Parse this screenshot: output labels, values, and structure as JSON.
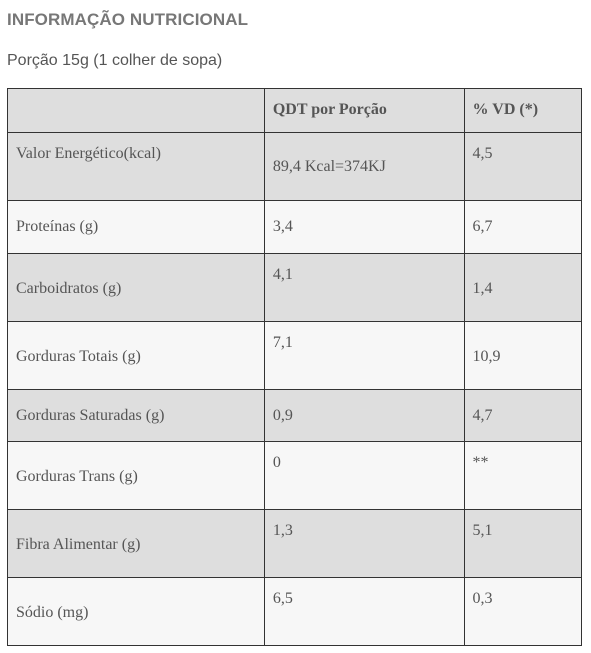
{
  "title": "INFORMAÇÃO NUTRICIONAL",
  "portion": "Porção 15g (1 colher de sopa)",
  "table": {
    "headers": [
      "",
      "QDT por Porção",
      "% VD (*)"
    ],
    "rows": [
      {
        "name": "Valor Energético(kcal)",
        "qty": "89,4 Kcal=374KJ",
        "vd": "4,5"
      },
      {
        "name": "Proteínas (g)",
        "qty": "3,4",
        "vd": "6,7"
      },
      {
        "name": "Carboidratos (g)",
        "qty": "4,1",
        "vd": "1,4"
      },
      {
        "name": "Gorduras Totais (g)",
        "qty": "7,1",
        "vd": "10,9"
      },
      {
        "name": "Gorduras Saturadas (g)",
        "qty": "0,9",
        "vd": "4,7"
      },
      {
        "name": "Gorduras Trans (g)",
        "qty": "0",
        "vd": "**"
      },
      {
        "name": "Fibra Alimentar (g)",
        "qty": "1,3",
        "vd": "5,1"
      },
      {
        "name": "Sódio (mg)",
        "qty": "6,5",
        "vd": "0,3"
      }
    ]
  }
}
